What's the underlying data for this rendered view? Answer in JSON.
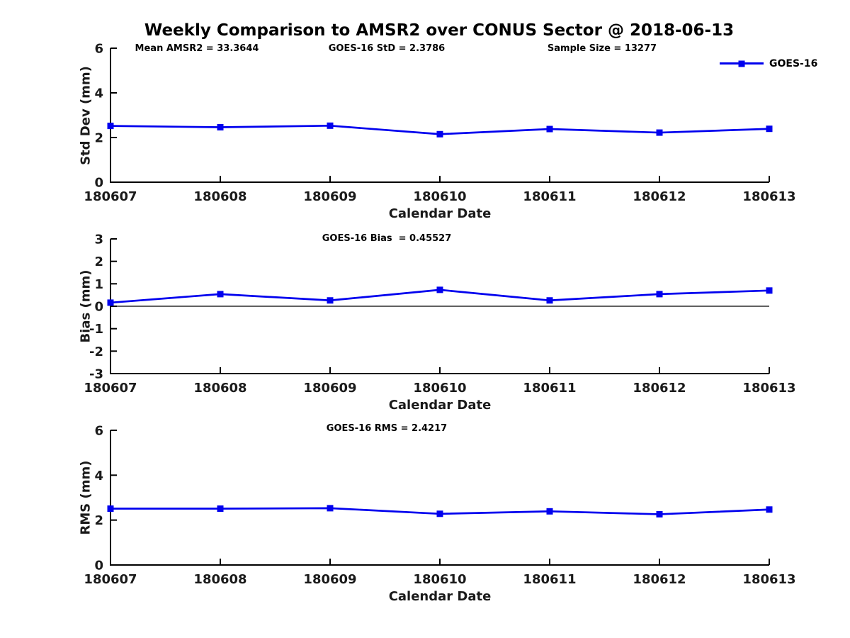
{
  "page": {
    "title": "Weekly Comparison to AMSR2 over CONUS Sector @ 2018-06-13",
    "background": "#ffffff"
  },
  "legend": {
    "label": "GOES-16",
    "color": "#0000ee",
    "marker": "square",
    "position": "top-right"
  },
  "annotations": {
    "mean_amsr2": "Mean AMSR2 = 33.3644",
    "goes16_std": "GOES-16 StD = 2.3786",
    "sample_size": "Sample Size = 13277",
    "goes16_bias": "GOES-16 Bias  = 0.45527",
    "goes16_rms": "GOES-16 RMS = 2.4217"
  },
  "chart_data": [
    {
      "type": "line",
      "title": "",
      "categories": [
        "180607",
        "180608",
        "180609",
        "180610",
        "180611",
        "180612",
        "180613"
      ],
      "series": [
        {
          "name": "GOES-16",
          "values": [
            2.52,
            2.46,
            2.53,
            2.15,
            2.38,
            2.22,
            2.39
          ]
        }
      ],
      "xlabel": "Calendar Date",
      "ylabel": "Std Dev (mm)",
      "ylim": [
        0,
        6
      ],
      "yticks": [
        0,
        2,
        4,
        6
      ],
      "zero_line": false,
      "grid": false,
      "line_color": "#0000ee",
      "marker": "square",
      "annotations": [
        "Mean AMSR2 = 33.3644",
        "GOES-16 StD = 2.3786",
        "Sample Size = 13277"
      ],
      "legend_entries": [
        "GOES-16"
      ]
    },
    {
      "type": "line",
      "title": "",
      "categories": [
        "180607",
        "180608",
        "180609",
        "180610",
        "180611",
        "180612",
        "180613"
      ],
      "series": [
        {
          "name": "GOES-16",
          "values": [
            0.16,
            0.54,
            0.26,
            0.73,
            0.26,
            0.54,
            0.7
          ]
        }
      ],
      "xlabel": "Calendar Date",
      "ylabel": "Bias (mm)",
      "ylim": [
        -3,
        3
      ],
      "yticks": [
        -3,
        -2,
        -1,
        0,
        1,
        2,
        3
      ],
      "zero_line": true,
      "grid": false,
      "line_color": "#0000ee",
      "marker": "square",
      "annotations": [
        "GOES-16 Bias  = 0.45527"
      ],
      "legend_entries": []
    },
    {
      "type": "line",
      "title": "",
      "categories": [
        "180607",
        "180608",
        "180609",
        "180610",
        "180611",
        "180612",
        "180613"
      ],
      "series": [
        {
          "name": "GOES-16",
          "values": [
            2.51,
            2.51,
            2.53,
            2.28,
            2.39,
            2.26,
            2.47
          ]
        }
      ],
      "xlabel": "Calendar Date",
      "ylabel": "RMS (mm)",
      "ylim": [
        0,
        6
      ],
      "yticks": [
        0,
        2,
        4,
        6
      ],
      "zero_line": false,
      "grid": false,
      "line_color": "#0000ee",
      "marker": "square",
      "annotations": [
        "GOES-16 RMS = 2.4217"
      ],
      "legend_entries": []
    }
  ]
}
